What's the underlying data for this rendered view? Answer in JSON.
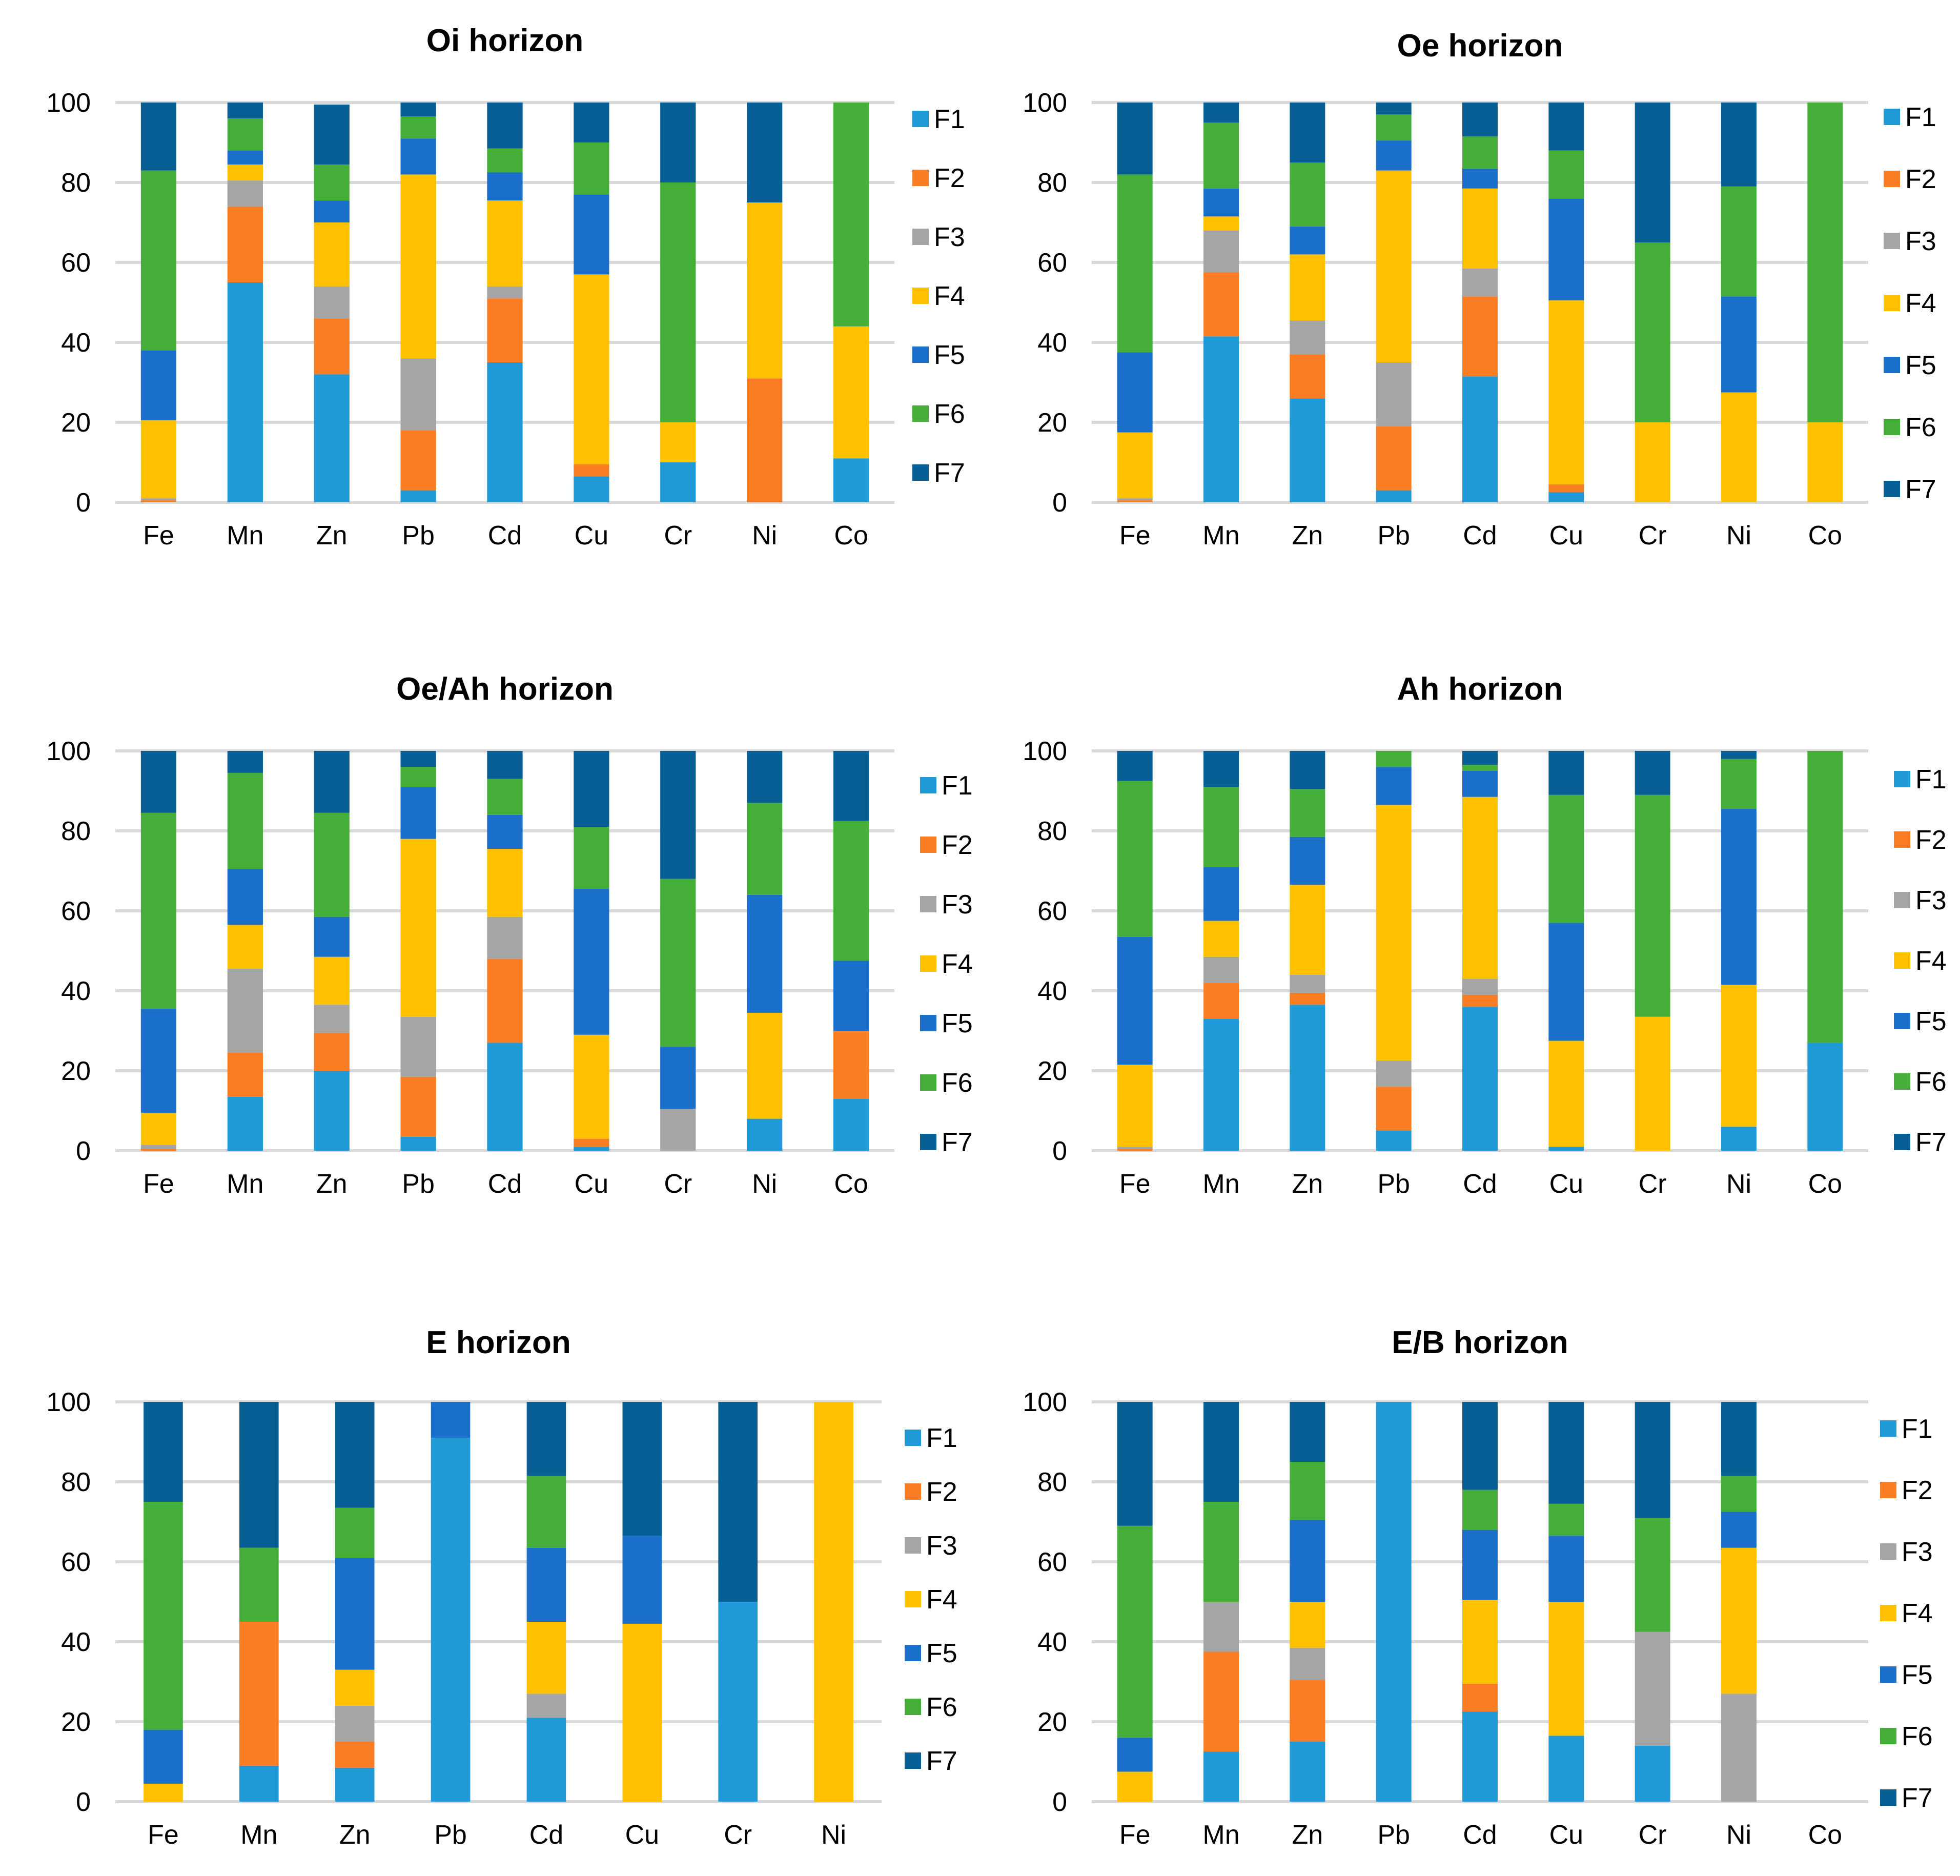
{
  "colors": {
    "F1": "#1f9ad6",
    "F2": "#fa7d24",
    "F3": "#a5a5a5",
    "F4": "#ffc000",
    "F5": "#1a6fca",
    "F6": "#45ae39",
    "F7": "#075f96"
  },
  "chart_data": [
    {
      "type": "bar",
      "stacked": true,
      "title": "Oi horizon",
      "categories": [
        "Fe",
        "Mn",
        "Zn",
        "Pb",
        "Cd",
        "Cu",
        "Cr",
        "Ni",
        "Co"
      ],
      "ylim": [
        0,
        100
      ],
      "yticks": [
        "0",
        "20",
        "40",
        "60",
        "80",
        "100"
      ],
      "grid": true,
      "legend": "right",
      "series": [
        {
          "name": "F1",
          "values": [
            0,
            55,
            32,
            3,
            35,
            6.5,
            10,
            0,
            11
          ]
        },
        {
          "name": "F2",
          "values": [
            0.5,
            19,
            14,
            15,
            16,
            3,
            0,
            31,
            0
          ]
        },
        {
          "name": "F3",
          "values": [
            0.5,
            6.5,
            8,
            18,
            3,
            0,
            0,
            0,
            0
          ]
        },
        {
          "name": "F4",
          "values": [
            19.5,
            4,
            16,
            46,
            21.5,
            47.5,
            10,
            44,
            33
          ]
        },
        {
          "name": "F5",
          "values": [
            17.5,
            3.5,
            5.5,
            9,
            7,
            20,
            0,
            0,
            0
          ]
        },
        {
          "name": "F6",
          "values": [
            45,
            8,
            9,
            5.5,
            6,
            13,
            60,
            0,
            56
          ]
        },
        {
          "name": "F7",
          "values": [
            17,
            4,
            15,
            3.5,
            11.5,
            10,
            20,
            25,
            0
          ]
        }
      ]
    },
    {
      "type": "bar",
      "stacked": true,
      "title": "Oe horizon",
      "categories": [
        "Fe",
        "Mn",
        "Zn",
        "Pb",
        "Cd",
        "Cu",
        "Cr",
        "Ni",
        "Co"
      ],
      "ylim": [
        0,
        100
      ],
      "yticks": [
        "0",
        "20",
        "40",
        "60",
        "80",
        "100"
      ],
      "grid": true,
      "legend": "right",
      "series": [
        {
          "name": "F1",
          "values": [
            0,
            41.5,
            26,
            3,
            31.5,
            2.5,
            0,
            0,
            0
          ]
        },
        {
          "name": "F2",
          "values": [
            0.5,
            16,
            11,
            16,
            20,
            2,
            0,
            0,
            0
          ]
        },
        {
          "name": "F3",
          "values": [
            0.5,
            10.5,
            8.5,
            16,
            7,
            0,
            0,
            0,
            0
          ]
        },
        {
          "name": "F4",
          "values": [
            16.5,
            3.5,
            16.5,
            48,
            20,
            46,
            20,
            27.5,
            20
          ]
        },
        {
          "name": "F5",
          "values": [
            20,
            7,
            7,
            7.5,
            5,
            25.5,
            0,
            24,
            0
          ]
        },
        {
          "name": "F6",
          "values": [
            44.5,
            16.5,
            16,
            6.5,
            8,
            12,
            45,
            27.5,
            80
          ]
        },
        {
          "name": "F7",
          "values": [
            18,
            5,
            15,
            3,
            8.5,
            12,
            35,
            21,
            0
          ]
        }
      ]
    },
    {
      "type": "bar",
      "stacked": true,
      "title": "Oe/Ah horizon",
      "categories": [
        "Fe",
        "Mn",
        "Zn",
        "Pb",
        "Cd",
        "Cu",
        "Cr",
        "Ni",
        "Co"
      ],
      "ylim": [
        0,
        100
      ],
      "yticks": [
        "0",
        "20",
        "40",
        "60",
        "80",
        "100"
      ],
      "grid": true,
      "legend": "right",
      "series": [
        {
          "name": "F1",
          "values": [
            0,
            13.5,
            20,
            3.5,
            27,
            1,
            0,
            8,
            13
          ]
        },
        {
          "name": "F2",
          "values": [
            0.5,
            11,
            9.5,
            15,
            21,
            2,
            0,
            0,
            17
          ]
        },
        {
          "name": "F3",
          "values": [
            1,
            21,
            7,
            15,
            10.5,
            0,
            10.5,
            0,
            0
          ]
        },
        {
          "name": "F4",
          "values": [
            8,
            11,
            12,
            44.5,
            17,
            26,
            0,
            26.5,
            0
          ]
        },
        {
          "name": "F5",
          "values": [
            26,
            14,
            10,
            13,
            8.5,
            36.5,
            15.5,
            29.5,
            17.5
          ]
        },
        {
          "name": "F6",
          "values": [
            49,
            24,
            26,
            5,
            9,
            15.5,
            42,
            23,
            35
          ]
        },
        {
          "name": "F7",
          "values": [
            15.5,
            5.5,
            15.5,
            4,
            7,
            19,
            32,
            13,
            17.5
          ]
        }
      ]
    },
    {
      "type": "bar",
      "stacked": true,
      "title": "Ah horizon",
      "categories": [
        "Fe",
        "Mn",
        "Zn",
        "Pb",
        "Cd",
        "Cu",
        "Cr",
        "Ni",
        "Co"
      ],
      "ylim": [
        0,
        100
      ],
      "yticks": [
        "0",
        "20",
        "40",
        "60",
        "80",
        "100"
      ],
      "grid": true,
      "legend": "right",
      "series": [
        {
          "name": "F1",
          "values": [
            0,
            33,
            36.5,
            5,
            36,
            1,
            0,
            6,
            27
          ]
        },
        {
          "name": "F2",
          "values": [
            0.5,
            9,
            3,
            11,
            3,
            0,
            0,
            0,
            0
          ]
        },
        {
          "name": "F3",
          "values": [
            0.5,
            6.5,
            4.5,
            6.5,
            4,
            0,
            0,
            0,
            0
          ]
        },
        {
          "name": "F4",
          "values": [
            20.5,
            9,
            22.5,
            64,
            45.5,
            26.5,
            33.5,
            35.5,
            0
          ]
        },
        {
          "name": "F5",
          "values": [
            32,
            13.5,
            12,
            9.5,
            6.5,
            29.5,
            0,
            44,
            0
          ]
        },
        {
          "name": "F6",
          "values": [
            39,
            20,
            12,
            4,
            1.5,
            32,
            55.5,
            12.5,
            73
          ]
        },
        {
          "name": "F7",
          "values": [
            7.5,
            9,
            9.5,
            0,
            3.5,
            11,
            11,
            2,
            0
          ]
        }
      ]
    },
    {
      "type": "bar",
      "stacked": true,
      "title": "E horizon",
      "categories": [
        "Fe",
        "Mn",
        "Zn",
        "Pb",
        "Cd",
        "Cu",
        "Cr",
        "Ni"
      ],
      "ylim": [
        0,
        100
      ],
      "yticks": [
        "0",
        "20",
        "40",
        "60",
        "80",
        "100"
      ],
      "grid": true,
      "legend": "right",
      "series": [
        {
          "name": "F1",
          "values": [
            0,
            9,
            8.5,
            91,
            21,
            0,
            50,
            0
          ]
        },
        {
          "name": "F2",
          "values": [
            0,
            36,
            6.5,
            0,
            0,
            0,
            0,
            0
          ]
        },
        {
          "name": "F3",
          "values": [
            0,
            0,
            9,
            0,
            6,
            0,
            0,
            0
          ]
        },
        {
          "name": "F4",
          "values": [
            4.5,
            0,
            9,
            0,
            18,
            44.5,
            0,
            100
          ]
        },
        {
          "name": "F5",
          "values": [
            13.5,
            0,
            28,
            9,
            18.5,
            22,
            0,
            0
          ]
        },
        {
          "name": "F6",
          "values": [
            57,
            18.5,
            12.5,
            0,
            18,
            0,
            0,
            0
          ]
        },
        {
          "name": "F7",
          "values": [
            25,
            36.5,
            26.5,
            0,
            18.5,
            33.5,
            50,
            0
          ]
        }
      ]
    },
    {
      "type": "bar",
      "stacked": true,
      "title": "E/B horizon",
      "categories": [
        "Fe",
        "Mn",
        "Zn",
        "Pb",
        "Cd",
        "Cu",
        "Cr",
        "Ni",
        "Co"
      ],
      "ylim": [
        0,
        100
      ],
      "yticks": [
        "0",
        "20",
        "40",
        "60",
        "80",
        "100"
      ],
      "grid": true,
      "legend": "right",
      "series": [
        {
          "name": "F1",
          "values": [
            0,
            12.5,
            15,
            100,
            22.5,
            16.5,
            14,
            0,
            0
          ]
        },
        {
          "name": "F2",
          "values": [
            0,
            25,
            15.5,
            0,
            7,
            0,
            0,
            0,
            0
          ]
        },
        {
          "name": "F3",
          "values": [
            0,
            12.5,
            8,
            0,
            0,
            0,
            28.5,
            27,
            0
          ]
        },
        {
          "name": "F4",
          "values": [
            7.5,
            0,
            11.5,
            0,
            21,
            33.5,
            0,
            36.5,
            0
          ]
        },
        {
          "name": "F5",
          "values": [
            8.5,
            0,
            20.5,
            0,
            17.5,
            16.5,
            0,
            9,
            0
          ]
        },
        {
          "name": "F6",
          "values": [
            53,
            25,
            14.5,
            0,
            10,
            8,
            28.5,
            9,
            0
          ]
        },
        {
          "name": "F7",
          "values": [
            31,
            25,
            15,
            0,
            22,
            25.5,
            29,
            18.5,
            0
          ]
        }
      ]
    }
  ]
}
